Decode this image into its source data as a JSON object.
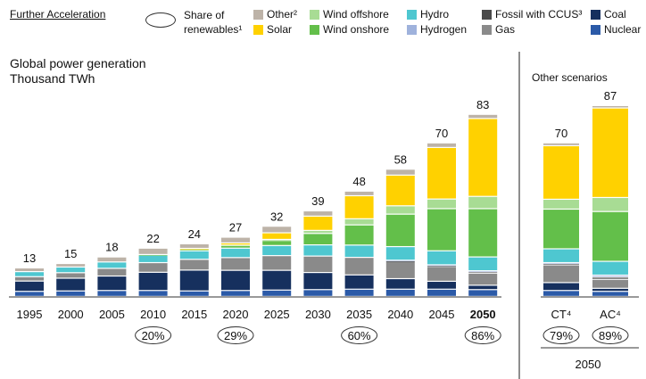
{
  "header": {
    "scenario_label": "Further Acceleration",
    "share_line1": "Share of",
    "share_line2": "renewables¹"
  },
  "legend": [
    {
      "key": "nuclear",
      "label": "Nuclear",
      "color": "#2b5aa8"
    },
    {
      "key": "coal",
      "label": "Coal",
      "color": "#16305e"
    },
    {
      "key": "gas",
      "label": "Gas",
      "color": "#8a8a8a"
    },
    {
      "key": "fossil_ccus",
      "label": "Fossil with CCUS³",
      "color": "#4a4a4a"
    },
    {
      "key": "hydrogen",
      "label": "Hydrogen",
      "color": "#9fb2dc"
    },
    {
      "key": "hydro",
      "label": "Hydro",
      "color": "#4ec7d0"
    },
    {
      "key": "wind_onshore",
      "label": "Wind onshore",
      "color": "#63bf4a"
    },
    {
      "key": "wind_offshore",
      "label": "Wind offshore",
      "color": "#a8dc94"
    },
    {
      "key": "solar",
      "label": "Solar",
      "color": "#ffd100"
    },
    {
      "key": "other",
      "label": "Other²",
      "color": "#bdb3a8"
    }
  ],
  "chart_data": [
    {
      "type": "bar",
      "stacked": true,
      "title": "Global power generation",
      "ylabel": "Thousand TWh",
      "categories": [
        "1995",
        "2000",
        "2005",
        "2010",
        "2015",
        "2020",
        "2025",
        "2030",
        "2035",
        "2040",
        "2045",
        "2050"
      ],
      "totals": [
        13,
        15,
        18,
        22,
        24,
        27,
        32,
        39,
        48,
        58,
        70,
        83
      ],
      "renewable_share": {
        "2010": "20%",
        "2020": "29%",
        "2035": "60%",
        "2050": "86%"
      },
      "ylim": [
        0,
        90
      ],
      "series": [
        {
          "key": "nuclear",
          "name": "Nuclear",
          "values": [
            2.3,
            2.5,
            2.7,
            2.7,
            2.5,
            2.7,
            2.9,
            3.1,
            3.3,
            3.3,
            3.3,
            3.1
          ]
        },
        {
          "key": "coal",
          "name": "Coal",
          "values": [
            4.7,
            5.8,
            6.6,
            8.3,
            9.5,
            9.2,
            9.0,
            7.8,
            6.5,
            4.8,
            3.6,
            2.0
          ]
        },
        {
          "key": "gas",
          "name": "Gas",
          "values": [
            2.0,
            2.5,
            3.5,
            4.4,
            4.9,
            5.8,
            6.7,
            7.5,
            8.0,
            8.0,
            6.8,
            5.5
          ]
        },
        {
          "key": "fossil_ccus",
          "name": "Fossil with CCUS",
          "values": [
            0,
            0,
            0,
            0,
            0,
            0,
            0,
            0,
            0,
            0.2,
            0.4,
            0.6
          ]
        },
        {
          "key": "hydrogen",
          "name": "Hydrogen",
          "values": [
            0,
            0,
            0,
            0,
            0,
            0,
            0,
            0,
            0,
            0.2,
            0.3,
            0.5
          ]
        },
        {
          "key": "hydro",
          "name": "Hydro",
          "values": [
            2.3,
            2.6,
            2.9,
            3.4,
            3.9,
            4.3,
            4.6,
            5.1,
            5.6,
            6.2,
            6.4,
            6.3
          ]
        },
        {
          "key": "wind_onshore",
          "name": "Wind onshore",
          "values": [
            0,
            0,
            0,
            0.3,
            0.8,
            1.3,
            2.3,
            5.2,
            9.2,
            14.8,
            19.2,
            22.0
          ]
        },
        {
          "key": "wind_offshore",
          "name": "Wind offshore",
          "values": [
            0,
            0,
            0,
            0,
            0,
            0.1,
            0.5,
            1.4,
            2.8,
            3.8,
            4.4,
            5.6
          ]
        },
        {
          "key": "solar",
          "name": "Solar",
          "values": [
            0,
            0,
            0,
            0,
            0.3,
            1.0,
            3.0,
            6.5,
            10.5,
            14.0,
            23.5,
            35.5
          ]
        },
        {
          "key": "other",
          "name": "Other",
          "values": [
            1.7,
            1.6,
            2.3,
            2.9,
            2.1,
            2.6,
            3.0,
            2.4,
            2.1,
            2.7,
            2.1,
            1.9
          ]
        }
      ]
    },
    {
      "type": "bar",
      "stacked": true,
      "title": "Other scenarios",
      "categories": [
        "CT⁴",
        "AC⁴"
      ],
      "totals": [
        70,
        87
      ],
      "renewable_share": {
        "CT⁴": "79%",
        "AC⁴": "89%"
      },
      "xlabel": "2050",
      "ylim": [
        0,
        90
      ],
      "series": [
        {
          "key": "nuclear",
          "name": "Nuclear",
          "values": [
            2.7,
            2.3
          ]
        },
        {
          "key": "coal",
          "name": "Coal",
          "values": [
            3.6,
            1.4
          ]
        },
        {
          "key": "gas",
          "name": "Gas",
          "values": [
            8.1,
            4.1
          ]
        },
        {
          "key": "fossil_ccus",
          "name": "Fossil with CCUS",
          "values": [
            0.5,
            1.0
          ]
        },
        {
          "key": "hydrogen",
          "name": "Hydrogen",
          "values": [
            0.5,
            0.9
          ]
        },
        {
          "key": "hydro",
          "name": "Hydro",
          "values": [
            6.3,
            6.3
          ]
        },
        {
          "key": "wind_onshore",
          "name": "Wind onshore",
          "values": [
            18.1,
            22.7
          ]
        },
        {
          "key": "wind_offshore",
          "name": "Wind offshore",
          "values": [
            4.5,
            6.4
          ]
        },
        {
          "key": "solar",
          "name": "Solar",
          "values": [
            24.4,
            40.8
          ]
        },
        {
          "key": "other",
          "name": "Other",
          "values": [
            1.3,
            1.1
          ]
        }
      ]
    }
  ]
}
